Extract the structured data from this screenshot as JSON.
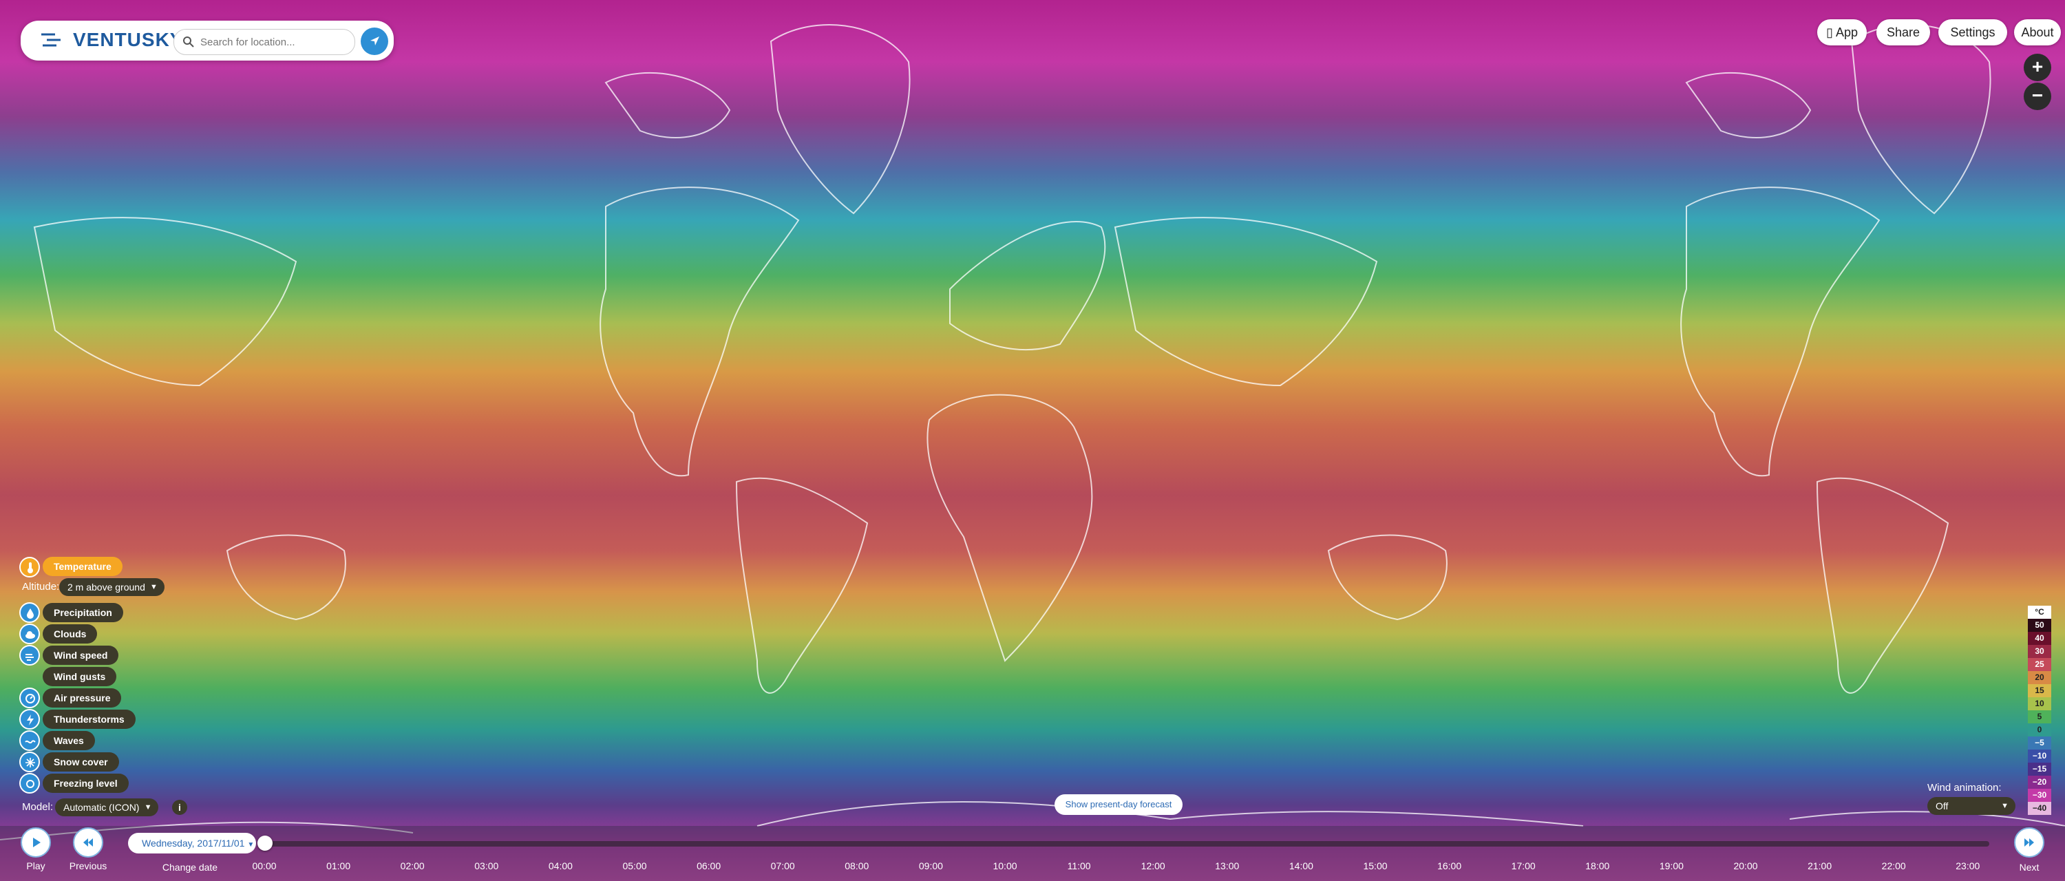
{
  "header": {
    "logo_text": "VENTUSKY",
    "search_placeholder": "Search for location...",
    "buttons": {
      "app": "App",
      "share": "Share",
      "settings": "Settings",
      "about": "About"
    }
  },
  "zoom": {
    "in": "+",
    "out": "−"
  },
  "layers": {
    "active": "Temperature",
    "altitude_label": "Altitude:",
    "altitude_value": "2 m above ground",
    "items": [
      "Precipitation",
      "Clouds",
      "Wind speed",
      "Wind gusts",
      "Air pressure",
      "Thunderstorms",
      "Waves",
      "Snow cover",
      "Freezing level"
    ]
  },
  "model": {
    "label": "Model:",
    "value": "Automatic (ICON)"
  },
  "legend": {
    "unit": "°C",
    "values": [
      "50",
      "40",
      "30",
      "25",
      "20",
      "15",
      "10",
      "5",
      "0",
      "−5",
      "−10",
      "−15",
      "−20",
      "−30",
      "−40"
    ],
    "colors": [
      "#2b0a16",
      "#6a0f2b",
      "#9b2a46",
      "#c54a5a",
      "#d88a45",
      "#d9b84a",
      "#a8c24c",
      "#4fb25a",
      "#2f9b8f",
      "#3a78b5",
      "#3a4fa8",
      "#4a2f8a",
      "#8a2a8f",
      "#c43aa8",
      "#e8b8e0"
    ]
  },
  "wind_animation": {
    "label": "Wind animation:",
    "value": "Off"
  },
  "present_forecast": "Show present-day forecast",
  "timeline": {
    "date": "Wednesday, 2017/11/01",
    "play": "Play",
    "previous": "Previous",
    "change_date": "Change date",
    "next": "Next",
    "hours": [
      "00:00",
      "01:00",
      "02:00",
      "03:00",
      "04:00",
      "05:00",
      "06:00",
      "07:00",
      "08:00",
      "09:00",
      "10:00",
      "11:00",
      "12:00",
      "13:00",
      "14:00",
      "15:00",
      "16:00",
      "17:00",
      "18:00",
      "19:00",
      "20:00",
      "21:00",
      "22:00",
      "23:00"
    ]
  }
}
